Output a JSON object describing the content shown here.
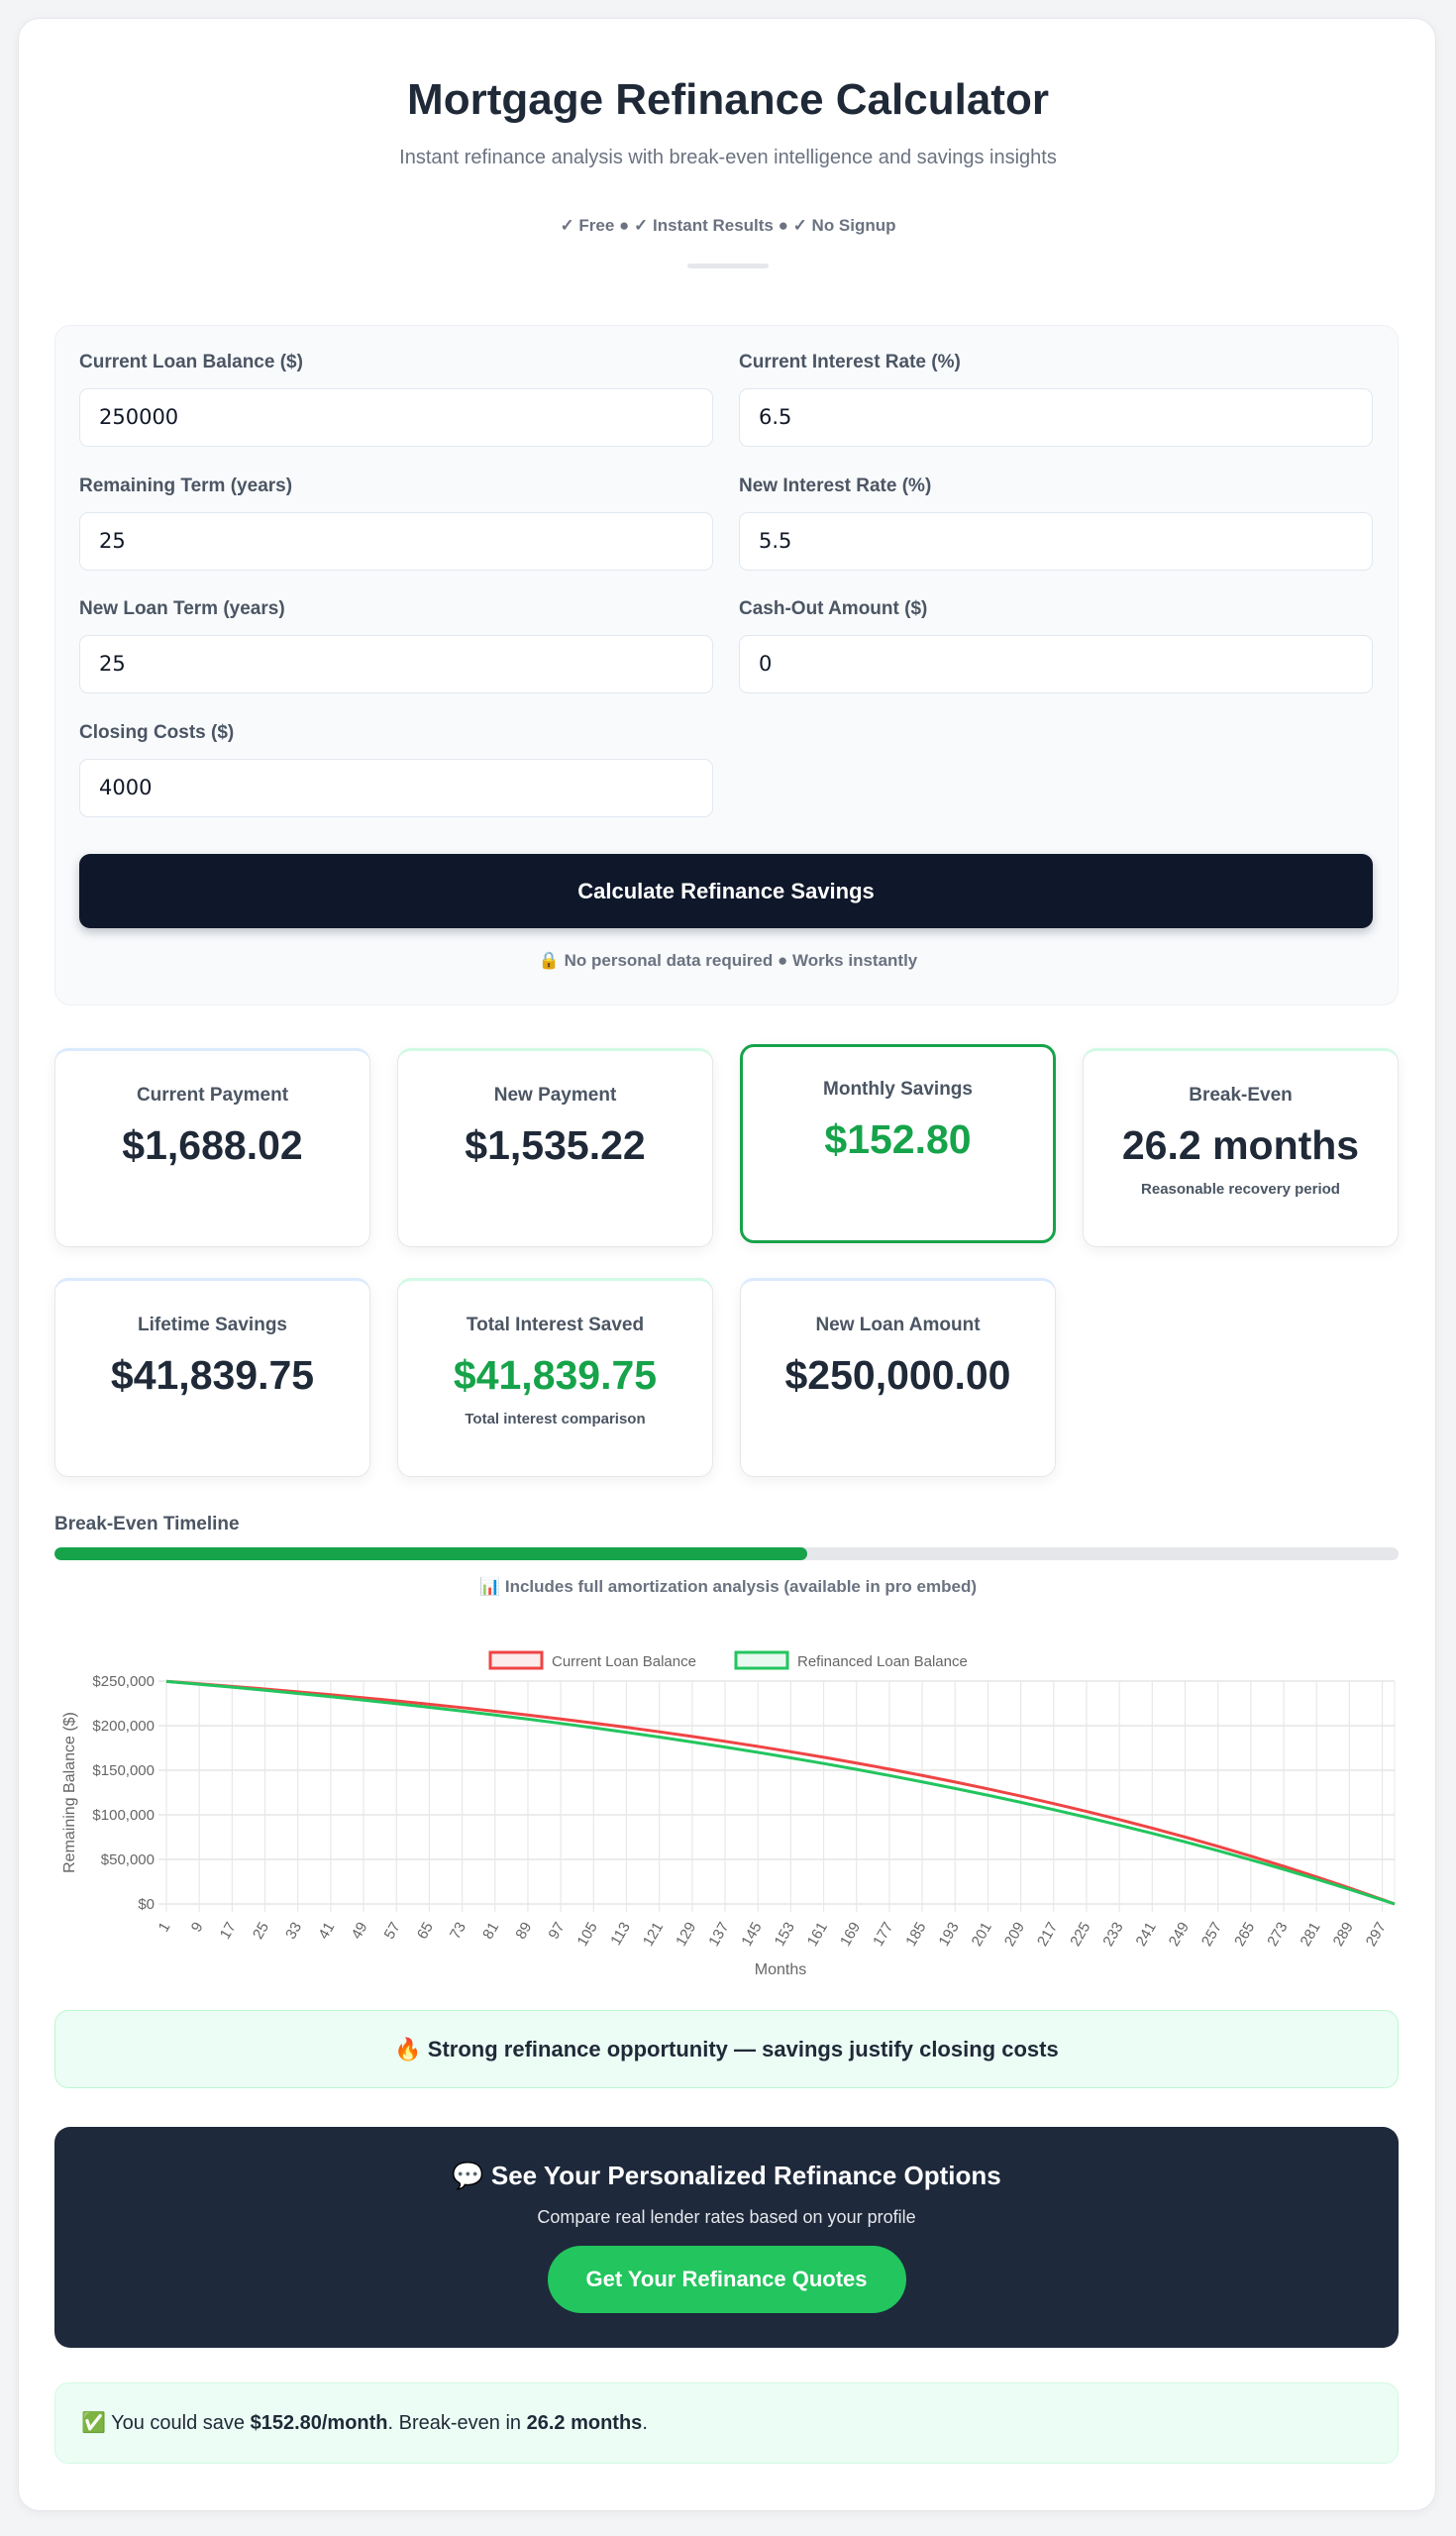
{
  "header": {
    "title": "Mortgage Refinance Calculator",
    "subtitle": "Instant refinance analysis with break-even intelligence and savings insights",
    "badges": "✓ Free ● ✓ Instant Results ● ✓ No Signup"
  },
  "form": {
    "fields": [
      {
        "label": "Current Loan Balance ($)",
        "value": "250000"
      },
      {
        "label": "Current Interest Rate (%)",
        "value": "6.5"
      },
      {
        "label": "Remaining Term (years)",
        "value": "25"
      },
      {
        "label": "New Interest Rate (%)",
        "value": "5.5"
      },
      {
        "label": "New Loan Term (years)",
        "value": "25"
      },
      {
        "label": "Cash-Out Amount ($)",
        "value": "0"
      },
      {
        "label": "Closing Costs ($)",
        "value": "4000"
      }
    ],
    "submit_label": "Calculate Refinance Savings",
    "privacy_note": "🔒 No personal data required ● Works instantly"
  },
  "results": [
    {
      "label": "Current Payment",
      "value": "$1,688.02"
    },
    {
      "label": "New Payment",
      "value": "$1,535.22"
    },
    {
      "label": "Monthly Savings",
      "value": "$152.80"
    },
    {
      "label": "Break-Even",
      "value": "26.2 months",
      "sub": "Reasonable recovery period"
    },
    {
      "label": "Lifetime Savings",
      "value": "$41,839.75"
    },
    {
      "label": "Total Interest Saved",
      "value": "$41,839.75",
      "sub": "Total interest comparison"
    },
    {
      "label": "New Loan Amount",
      "value": "$250,000.00"
    }
  ],
  "timeline": {
    "label": "Break-Even Timeline",
    "progress_percent": 56,
    "note": "📊 Includes full amortization analysis (available in pro embed)"
  },
  "colors": {
    "accent_green": "#16a34a",
    "current_line": "#ef4444",
    "refi_line": "#22c55e",
    "dark": "#0f172a"
  },
  "chart_data": {
    "type": "line",
    "xlabel": "Months",
    "ylabel": "Remaining Balance ($)",
    "legend_position": "top",
    "grid": true,
    "ylim": [
      0,
      250000
    ],
    "yticks": [
      "$0",
      "$50,000",
      "$100,000",
      "$150,000",
      "$200,000",
      "$250,000"
    ],
    "xlim": [
      1,
      300
    ],
    "x": [
      1,
      9,
      17,
      25,
      33,
      41,
      49,
      57,
      65,
      73,
      81,
      89,
      97,
      105,
      113,
      121,
      129,
      137,
      145,
      153,
      161,
      169,
      177,
      185,
      193,
      201,
      209,
      217,
      225,
      233,
      241,
      249,
      257,
      265,
      273,
      281,
      289,
      297,
      300
    ],
    "xtick_labels": [
      "1",
      "9",
      "17",
      "25",
      "33",
      "41",
      "49",
      "57",
      "65",
      "73",
      "81",
      "89",
      "97",
      "105",
      "113",
      "121",
      "129",
      "137",
      "145",
      "153",
      "161",
      "169",
      "177",
      "185",
      "193",
      "201",
      "209",
      "217",
      "225",
      "233",
      "241",
      "249",
      "257",
      "265",
      "273",
      "281",
      "289",
      "297"
    ],
    "series": [
      {
        "name": "Current Loan Balance",
        "color": "#ef4444",
        "values": [
          249666,
          246929,
          244072,
          241087,
          237971,
          234718,
          231320,
          227774,
          224070,
          220202,
          216164,
          211947,
          207545,
          202947,
          198147,
          193135,
          187900,
          182435,
          176729,
          170772,
          164550,
          158054,
          151273,
          144196,
          136801,
          129080,
          121021,
          112601,
          103810,
          94633,
          85051,
          75046,
          64596,
          53686,
          42295,
          30400,
          17984,
          5014,
          0
        ]
      },
      {
        "name": "Refinanced Loan Balance",
        "color": "#22c55e",
        "values": [
          249611,
          246430,
          243132,
          239711,
          236161,
          232479,
          228662,
          224701,
          220592,
          216332,
          211912,
          207327,
          202572,
          197635,
          192518,
          187211,
          181709,
          175997,
          170070,
          163926,
          157556,
          150944,
          144086,
          136976,
          129597,
          121946,
          114010,
          105775,
          97236,
          88381,
          79191,
          69663,
          59780,
          49527,
          38893,
          27862,
          16417,
          4552,
          0
        ]
      }
    ]
  },
  "alert": "🔥 Strong refinance opportunity — savings justify closing costs",
  "cta": {
    "heading": "💬 See Your Personalized Refinance Options",
    "text": "Compare real lender rates based on your profile",
    "button": "Get Your Refinance Quotes"
  },
  "summary": {
    "prefix": "✅ You could save ",
    "savings": "$152.80/month",
    "middle": ". Break-even in ",
    "months": "26.2 months",
    "suffix": "."
  }
}
